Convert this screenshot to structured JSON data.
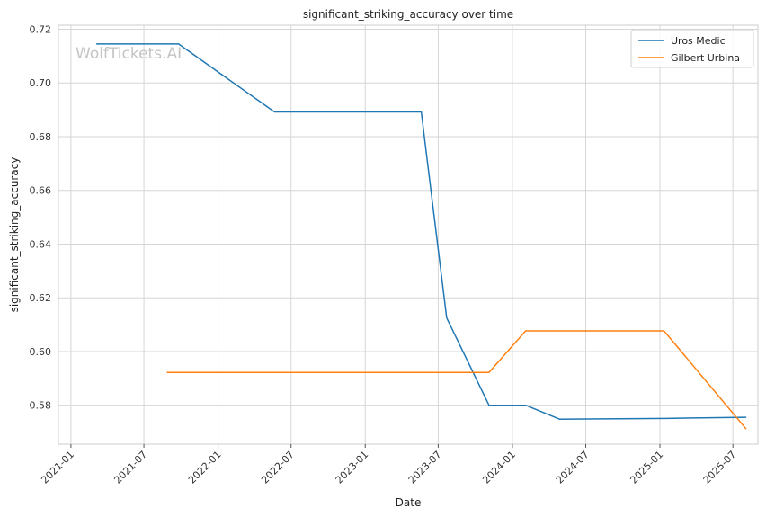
{
  "chart_data": {
    "type": "line",
    "title": "significant_striking_accuracy over time",
    "xlabel": "Date",
    "ylabel": "significant_striking_accuracy",
    "watermark": "WolfTickets.AI",
    "xlim": [
      "2020-12-01",
      "2025-09-01"
    ],
    "ylim": [
      0.5655,
      0.7215
    ],
    "x_ticks": [
      "2021-01",
      "2021-07",
      "2022-01",
      "2022-07",
      "2023-01",
      "2023-07",
      "2024-01",
      "2024-07",
      "2025-01",
      "2025-07"
    ],
    "y_ticks": [
      0.58,
      0.6,
      0.62,
      0.64,
      0.66,
      0.68,
      0.7,
      0.72
    ],
    "y_tick_labels": [
      "0.58",
      "0.60",
      "0.62",
      "0.64",
      "0.66",
      "0.68",
      "0.70",
      "0.72"
    ],
    "grid": true,
    "legend_position": "top-right",
    "series": [
      {
        "name": "Uros Medic",
        "color": "#1f77b4",
        "points": [
          [
            "2021-03-06",
            0.7145
          ],
          [
            "2021-09-25",
            0.7145
          ],
          [
            "2022-05-21",
            0.6892
          ],
          [
            "2023-05-20",
            0.6892
          ],
          [
            "2023-07-22",
            0.6125
          ],
          [
            "2023-11-04",
            0.58
          ],
          [
            "2024-02-03",
            0.58
          ],
          [
            "2024-04-27",
            0.5748
          ],
          [
            "2025-01-18",
            0.5751
          ],
          [
            "2025-08-02",
            0.5755
          ]
        ]
      },
      {
        "name": "Gilbert Urbina",
        "color": "#ff7f0e",
        "points": [
          [
            "2021-08-28",
            0.5922
          ],
          [
            "2023-11-04",
            0.5922
          ],
          [
            "2024-02-03",
            0.6077
          ],
          [
            "2025-01-11",
            0.6077
          ],
          [
            "2025-08-02",
            0.5713
          ]
        ]
      }
    ]
  }
}
